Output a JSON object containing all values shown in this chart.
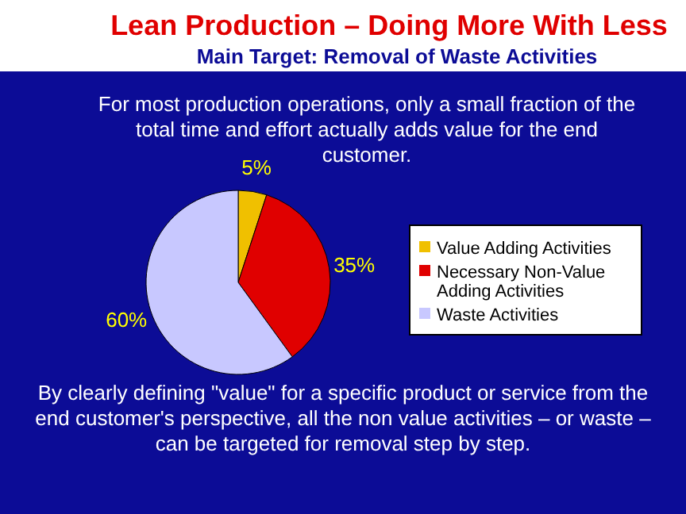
{
  "chart_data": {
    "type": "pie",
    "title": "Lean Production – Doing More With Less",
    "subtitle": "Main Target: Removal of Waste Activities",
    "categories": [
      "Value Adding Activities",
      "Necessary Non-Value Adding Activities",
      "Waste Activities"
    ],
    "values": [
      5,
      35,
      60
    ],
    "colors": [
      "#f0c000",
      "#e00000",
      "#c8c8ff"
    ],
    "value_labels": [
      "5%",
      "35%",
      "60%"
    ],
    "legend": "right",
    "annotations": [
      "For most production operations, only a small fraction of the total time and effort actually adds value for the end customer.",
      "By clearly defining \"value\" for a specific product or service from the end customer's perspective, all the non value activities – or waste – can be targeted for removal step by step."
    ]
  }
}
